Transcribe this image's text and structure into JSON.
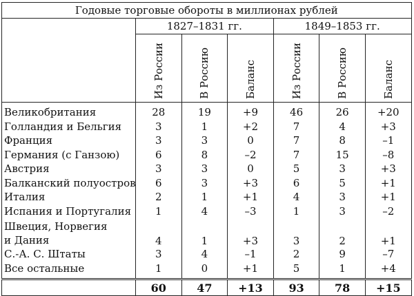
{
  "title": "Годовые торговые обороты в миллионах рублей",
  "periods": [
    "1827–1831 гг.",
    "1849–1853 гг."
  ],
  "columns": [
    "Из России",
    "В Россию",
    "Баланс"
  ],
  "rows": [
    {
      "name": "Великобритания",
      "v": [
        "28",
        "19",
        "+9",
        "46",
        "26",
        "+20"
      ]
    },
    {
      "name": "Голландия и Бельгия",
      "v": [
        "3",
        "1",
        "+2",
        "7",
        "4",
        "+3"
      ]
    },
    {
      "name": "Франция",
      "v": [
        "3",
        "3",
        "0",
        "7",
        "8",
        "–1"
      ]
    },
    {
      "name": "Германия (с Ганзою)",
      "v": [
        "6",
        "8",
        "–2",
        "7",
        "15",
        "–8"
      ]
    },
    {
      "name": "Австрия",
      "v": [
        "3",
        "3",
        "0",
        "5",
        "3",
        "+3"
      ]
    },
    {
      "name": "Балканский полуостров",
      "v": [
        "6",
        "3",
        "+3",
        "6",
        "5",
        "+1"
      ]
    },
    {
      "name": "Италия",
      "v": [
        "2",
        "1",
        "+1",
        "4",
        "3",
        "+1"
      ]
    },
    {
      "name": "Испания и Португалия",
      "v": [
        "1",
        "4",
        "–3",
        "1",
        "3",
        "–2"
      ]
    },
    {
      "name_line1": "Швеция, Норвегия",
      "name_line2": "и Дания",
      "v": [
        "4",
        "1",
        "+3",
        "3",
        "2",
        "+1"
      ]
    },
    {
      "name": "С.-А. С. Штаты",
      "v": [
        "3",
        "4",
        "–1",
        "2",
        "9",
        "–7"
      ]
    },
    {
      "name": "Все остальные",
      "v": [
        "1",
        "0",
        "+1",
        "5",
        "1",
        "+4"
      ]
    }
  ],
  "totals": [
    "60",
    "47",
    "+13",
    "93",
    "78",
    "+15"
  ]
}
